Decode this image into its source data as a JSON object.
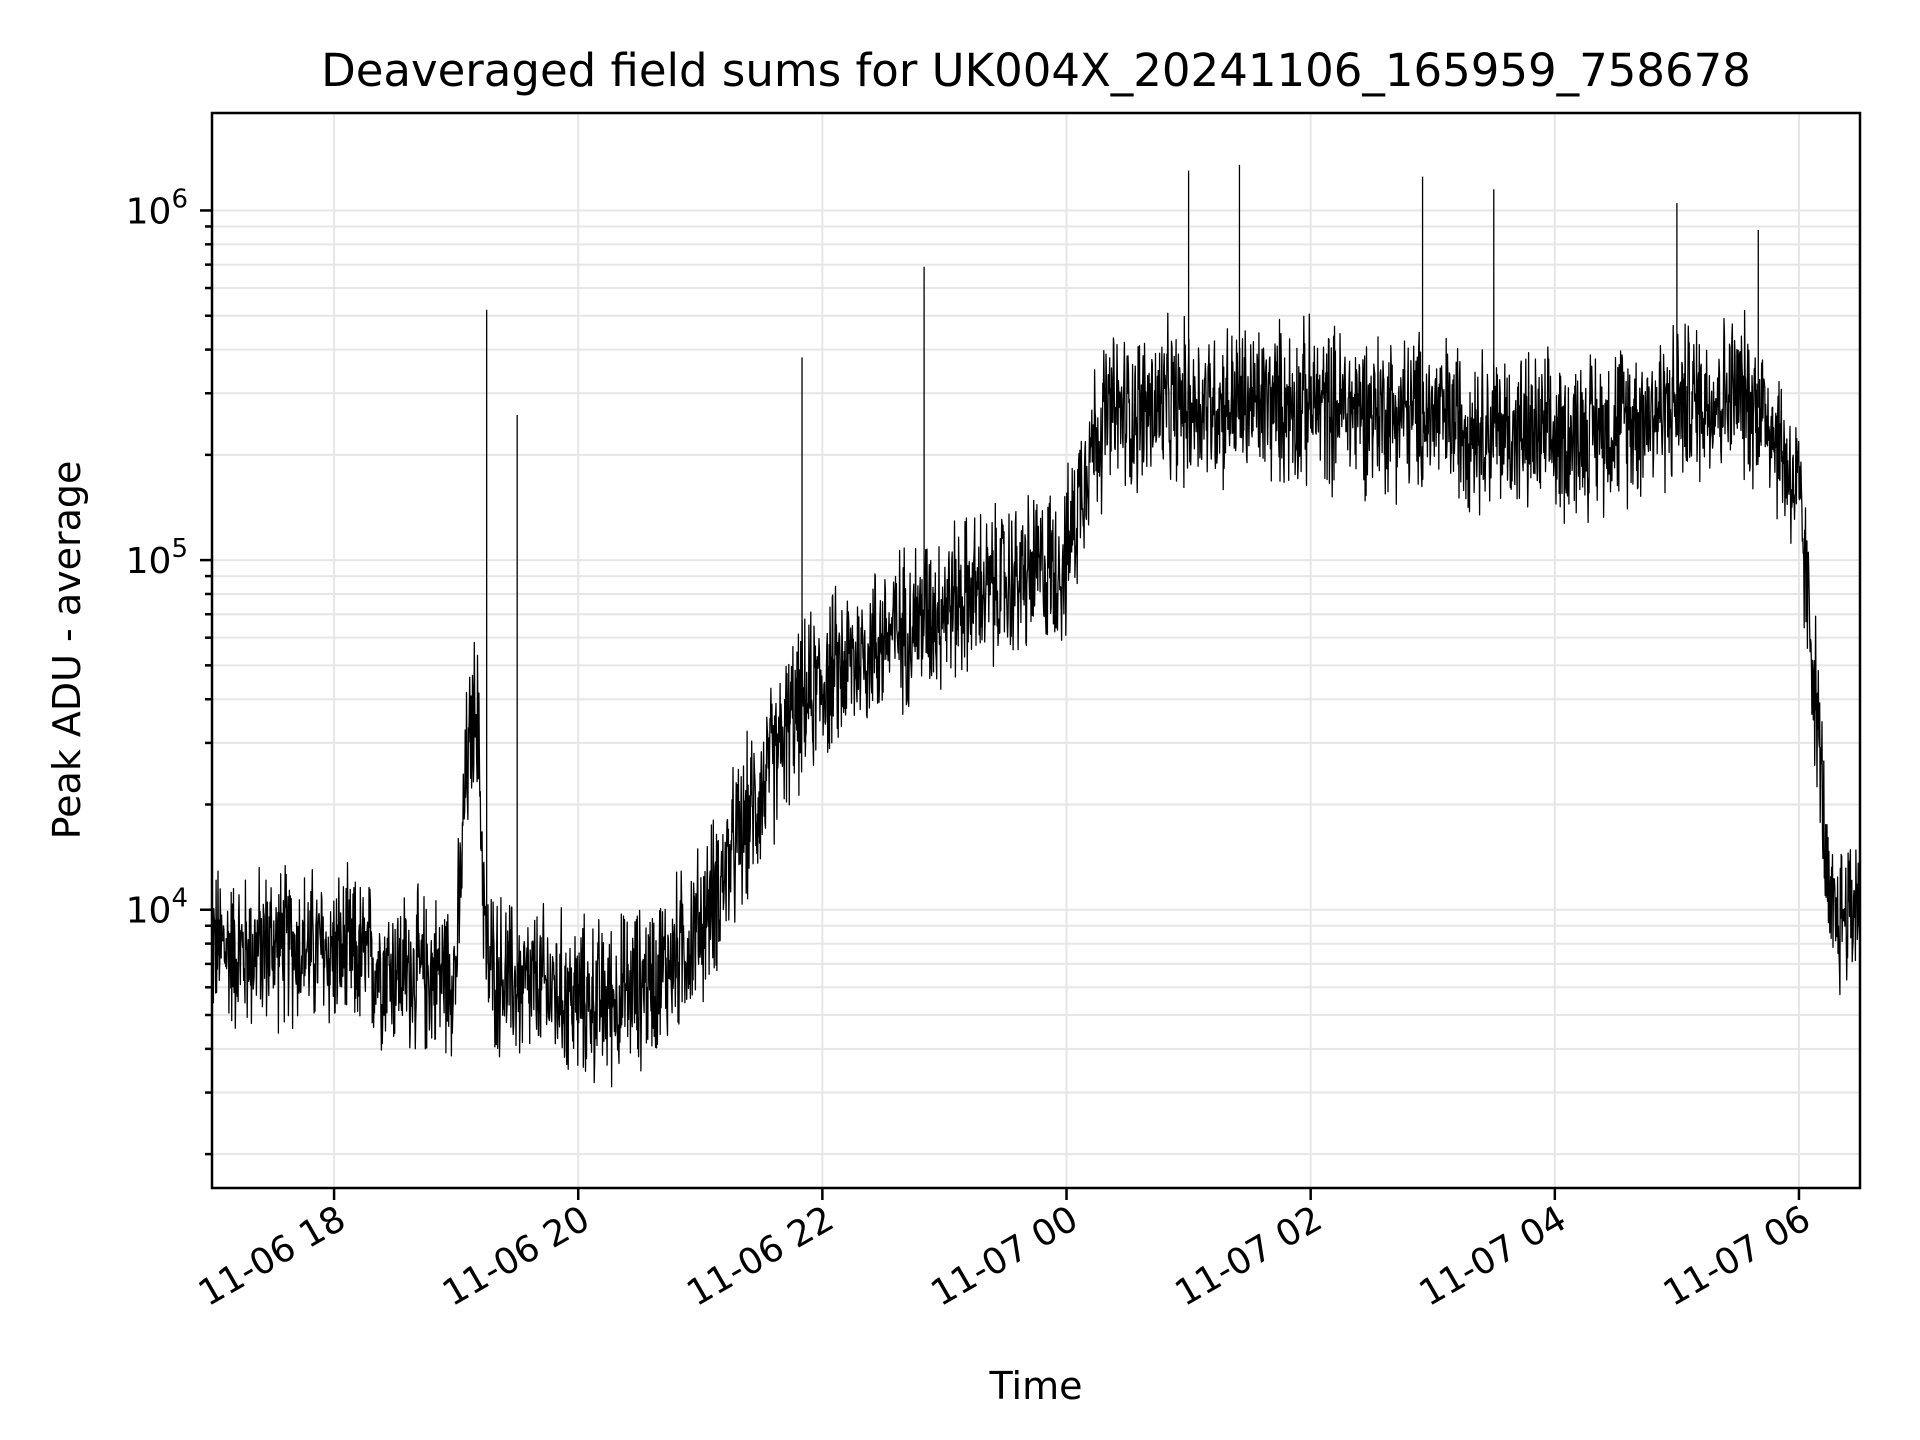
{
  "chart_data": {
    "type": "line",
    "title": "Deaveraged field sums for UK004X_20241106_165959_758678",
    "xlabel": "Time",
    "ylabel": "Peak ADU - average",
    "x_scale": "time",
    "y_scale": "log",
    "xlim": [
      "2024-11-06 17:00",
      "2024-11-07 06:30"
    ],
    "ylim": [
      1600,
      1900000
    ],
    "grid": true,
    "legend": "none",
    "line_color": "#000000",
    "x_ticks": [
      {
        "value": "2024-11-06 18:00",
        "label": "11-06 18"
      },
      {
        "value": "2024-11-06 20:00",
        "label": "11-06 20"
      },
      {
        "value": "2024-11-06 22:00",
        "label": "11-06 22"
      },
      {
        "value": "2024-11-07 00:00",
        "label": "11-07 00"
      },
      {
        "value": "2024-11-07 02:00",
        "label": "11-07 02"
      },
      {
        "value": "2024-11-07 04:00",
        "label": "11-07 04"
      },
      {
        "value": "2024-11-07 06:00",
        "label": "11-07 06"
      }
    ],
    "y_ticks": [
      {
        "value": 10000,
        "base": "10",
        "exp": "4"
      },
      {
        "value": 100000,
        "base": "10",
        "exp": "5"
      },
      {
        "value": 1000000,
        "base": "10",
        "exp": "6"
      }
    ],
    "series": [
      {
        "x": [
          "2024-11-06 17:00",
          "2024-11-06 17:15",
          "2024-11-06 17:30",
          "2024-11-06 17:45",
          "2024-11-06 18:00",
          "2024-11-06 18:15",
          "2024-11-06 18:30",
          "2024-11-06 18:45",
          "2024-11-06 19:00",
          "2024-11-06 19:05",
          "2024-11-06 19:10",
          "2024-11-06 19:15",
          "2024-11-06 19:30",
          "2024-11-06 19:45",
          "2024-11-06 20:00",
          "2024-11-06 20:15",
          "2024-11-06 20:30",
          "2024-11-06 20:45",
          "2024-11-06 21:00",
          "2024-11-06 21:15",
          "2024-11-06 21:30",
          "2024-11-06 21:45",
          "2024-11-06 22:00",
          "2024-11-06 22:30",
          "2024-11-06 23:00",
          "2024-11-06 23:30",
          "2024-11-07 00:00",
          "2024-11-07 00:10",
          "2024-11-07 00:20",
          "2024-11-07 01:00",
          "2024-11-07 02:00",
          "2024-11-07 03:00",
          "2024-11-07 04:00",
          "2024-11-07 05:00",
          "2024-11-07 05:30",
          "2024-11-07 05:45",
          "2024-11-07 06:00",
          "2024-11-07 06:05",
          "2024-11-07 06:10",
          "2024-11-07 06:15",
          "2024-11-07 06:30"
        ],
        "y": [
          8000,
          7500,
          8000,
          7800,
          7500,
          7200,
          6800,
          6500,
          6800,
          25000,
          40000,
          7000,
          6000,
          6000,
          5500,
          5500,
          6000,
          7000,
          9000,
          14000,
          22000,
          35000,
          45000,
          60000,
          75000,
          85000,
          100000,
          200000,
          260000,
          280000,
          280000,
          260000,
          220000,
          280000,
          300000,
          260000,
          150000,
          70000,
          30000,
          9000,
          11000
        ]
      }
    ],
    "spikes": [
      {
        "x": "2024-11-06 19:15",
        "y": 520000
      },
      {
        "x": "2024-11-06 19:30",
        "y": 260000
      },
      {
        "x": "2024-11-06 21:50",
        "y": 380000
      },
      {
        "x": "2024-11-06 22:50",
        "y": 690000
      },
      {
        "x": "2024-11-07 01:00",
        "y": 1300000
      },
      {
        "x": "2024-11-07 01:25",
        "y": 1350000
      },
      {
        "x": "2024-11-07 02:55",
        "y": 1250000
      },
      {
        "x": "2024-11-07 03:30",
        "y": 1150000
      },
      {
        "x": "2024-11-07 05:00",
        "y": 1050000
      },
      {
        "x": "2024-11-07 05:40",
        "y": 880000
      }
    ]
  }
}
